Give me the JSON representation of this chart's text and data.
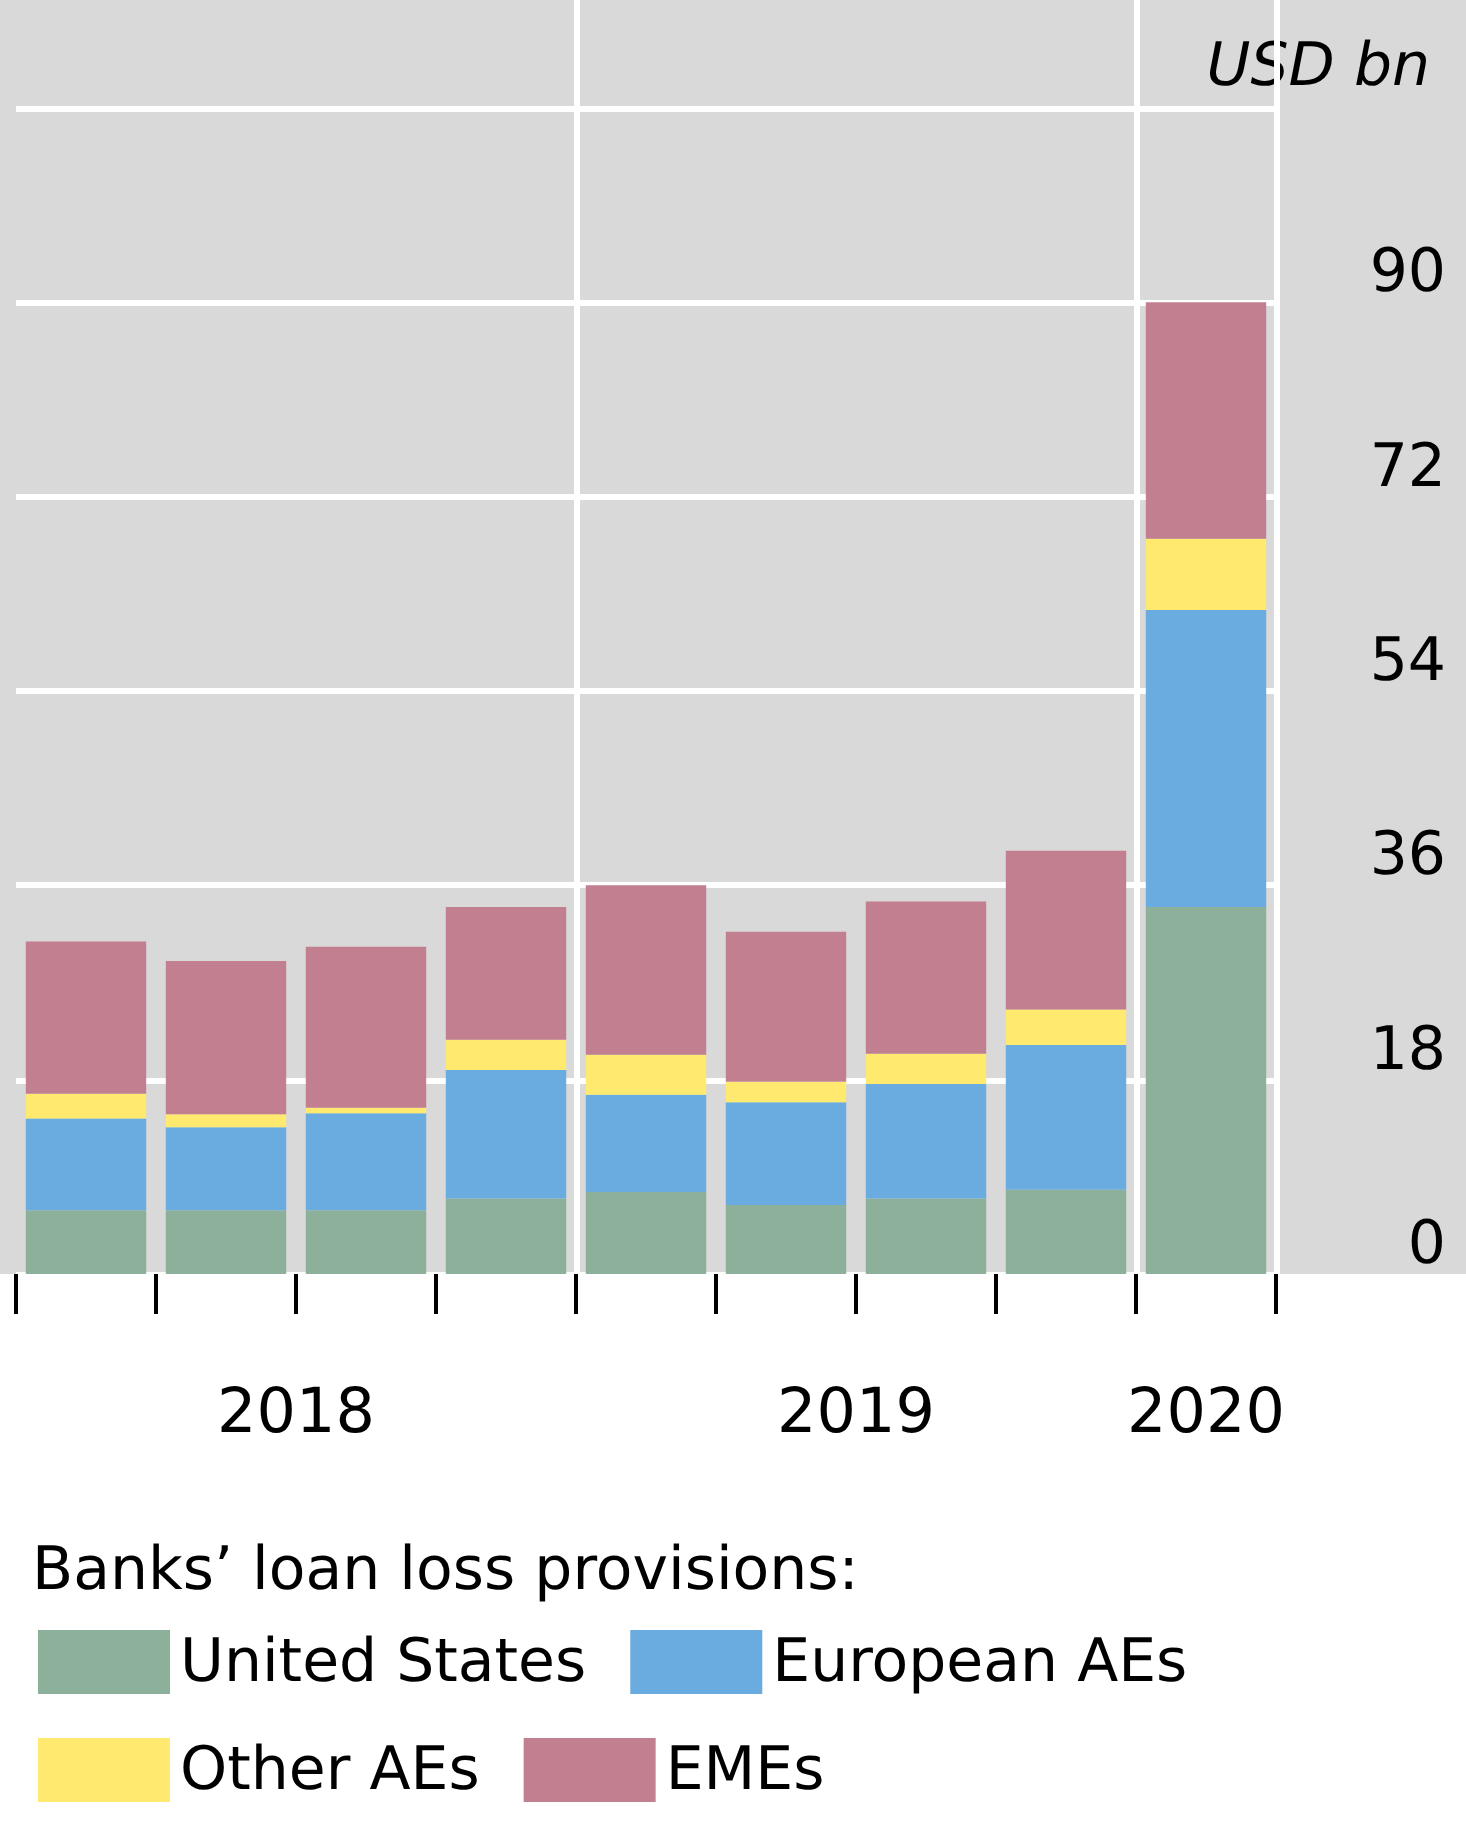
{
  "chart_data": {
    "type": "bar",
    "stacked": true,
    "ylabel": "USD bn",
    "legend_title": "Banks’ loan loss provisions:",
    "legend": "bottom",
    "grid": true,
    "categories": [
      null,
      null,
      null,
      null,
      null,
      null,
      null,
      null,
      null
    ],
    "annotations": [
      "2018",
      "2019",
      "2020"
    ],
    "series": [
      {
        "name": "United States",
        "color": "#8cb09a",
        "values": [
          5.9,
          5.9,
          5.9,
          7.0,
          7.6,
          6.4,
          7.0,
          7.8,
          34.0
        ]
      },
      {
        "name": "European AEs",
        "color": "#6aacdf",
        "values": [
          8.5,
          7.7,
          9.0,
          11.9,
          9.0,
          9.5,
          10.6,
          13.4,
          27.5
        ]
      },
      {
        "name": "Other AEs",
        "color": "#ffe96f",
        "values": [
          2.3,
          1.2,
          0.5,
          2.8,
          3.7,
          1.9,
          2.8,
          3.3,
          6.6
        ]
      },
      {
        "name": "EMEs",
        "color": "#c27f8f",
        "values": [
          14.1,
          14.2,
          14.9,
          12.3,
          15.7,
          13.9,
          14.1,
          14.7,
          21.9
        ]
      }
    ],
    "ylim": [
      0,
      118
    ],
    "yticks": [
      0,
      18,
      36,
      54,
      72,
      90,
      {
        "value": 108,
        "label": null
      }
    ]
  }
}
